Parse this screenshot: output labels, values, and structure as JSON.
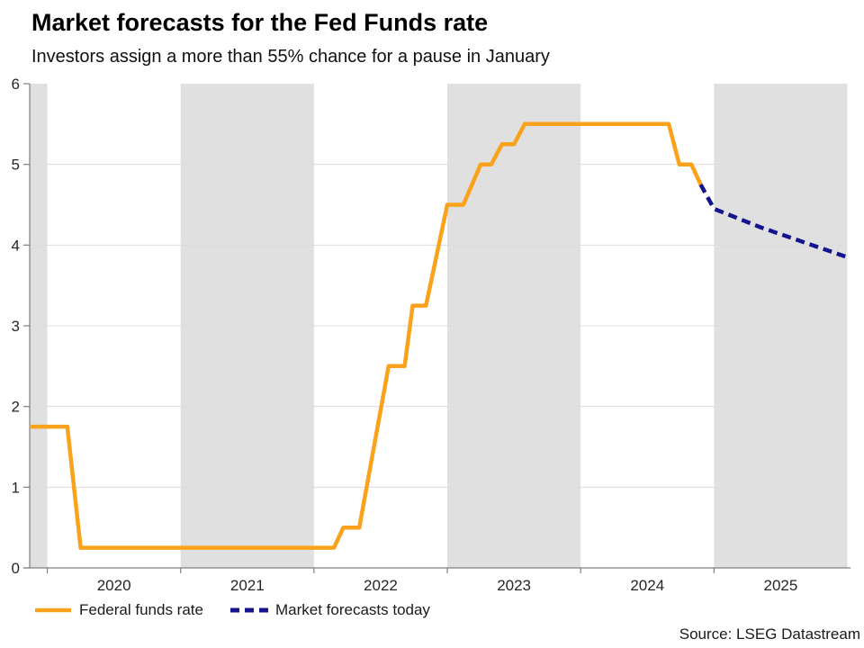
{
  "header": {
    "title": "Market forecasts for the Fed Funds rate",
    "subtitle": "Investors assign a more than 55% chance for a pause in January"
  },
  "legend": {
    "items": [
      {
        "label": "Federal funds rate",
        "color": "#FAA21B",
        "style": "solid"
      },
      {
        "label": "Market forecasts today",
        "color": "#14148F",
        "style": "dashed"
      }
    ]
  },
  "source_label": "Source: LSEG Datastream",
  "chart_data": {
    "type": "line",
    "title": "Market forecasts for the Fed Funds rate",
    "subtitle": "Investors assign a more than 55% chance for a pause in January",
    "x_axis": {
      "range": [
        2019.868,
        2026.0
      ],
      "ticks": [
        2020,
        2021,
        2022,
        2023,
        2024,
        2025
      ],
      "tick_labels": [
        "2020",
        "2021",
        "2022",
        "2023",
        "2024",
        "2025"
      ],
      "label_positions": [
        2020.5,
        2021.5,
        2022.5,
        2023.5,
        2024.5,
        2025.5
      ]
    },
    "y_axis": {
      "range": [
        0,
        6
      ],
      "ticks": [
        0,
        1,
        2,
        3,
        4,
        5,
        6
      ],
      "gridlines": [
        1,
        2,
        3,
        4,
        5
      ]
    },
    "shaded_periods": [
      [
        2019.868,
        2020
      ],
      [
        2021,
        2022
      ],
      [
        2023,
        2024
      ],
      [
        2025,
        2026
      ]
    ],
    "colors": {
      "band": "#E0E0E0",
      "gridline": "#DCDCDC",
      "axis": "#7F7F7F",
      "tick_text": "#262626"
    },
    "grid": true,
    "legend_position": "bottom-left",
    "series": [
      {
        "name": "Federal funds rate",
        "color": "#FAA21B",
        "dash": null,
        "points": [
          [
            2019.868,
            1.75
          ],
          [
            2020.15,
            1.75
          ],
          [
            2020.25,
            0.25
          ],
          [
            2022.15,
            0.25
          ],
          [
            2022.22,
            0.5
          ],
          [
            2022.34,
            0.5
          ],
          [
            2022.56,
            2.5
          ],
          [
            2022.68,
            2.5
          ],
          [
            2022.74,
            3.25
          ],
          [
            2022.84,
            3.25
          ],
          [
            2023.0,
            4.5
          ],
          [
            2023.12,
            4.5
          ],
          [
            2023.25,
            5.0
          ],
          [
            2023.33,
            5.0
          ],
          [
            2023.41,
            5.25
          ],
          [
            2023.5,
            5.25
          ],
          [
            2023.58,
            5.5
          ],
          [
            2024.66,
            5.5
          ],
          [
            2024.74,
            5.0
          ],
          [
            2024.83,
            5.0
          ],
          [
            2024.9,
            4.75
          ]
        ]
      },
      {
        "name": "Market forecasts today",
        "color": "#14148F",
        "dash": "10 6",
        "points": [
          [
            2024.9,
            4.75
          ],
          [
            2025.0,
            4.45
          ],
          [
            2025.35,
            4.22
          ],
          [
            2026.0,
            3.85
          ]
        ]
      }
    ]
  }
}
